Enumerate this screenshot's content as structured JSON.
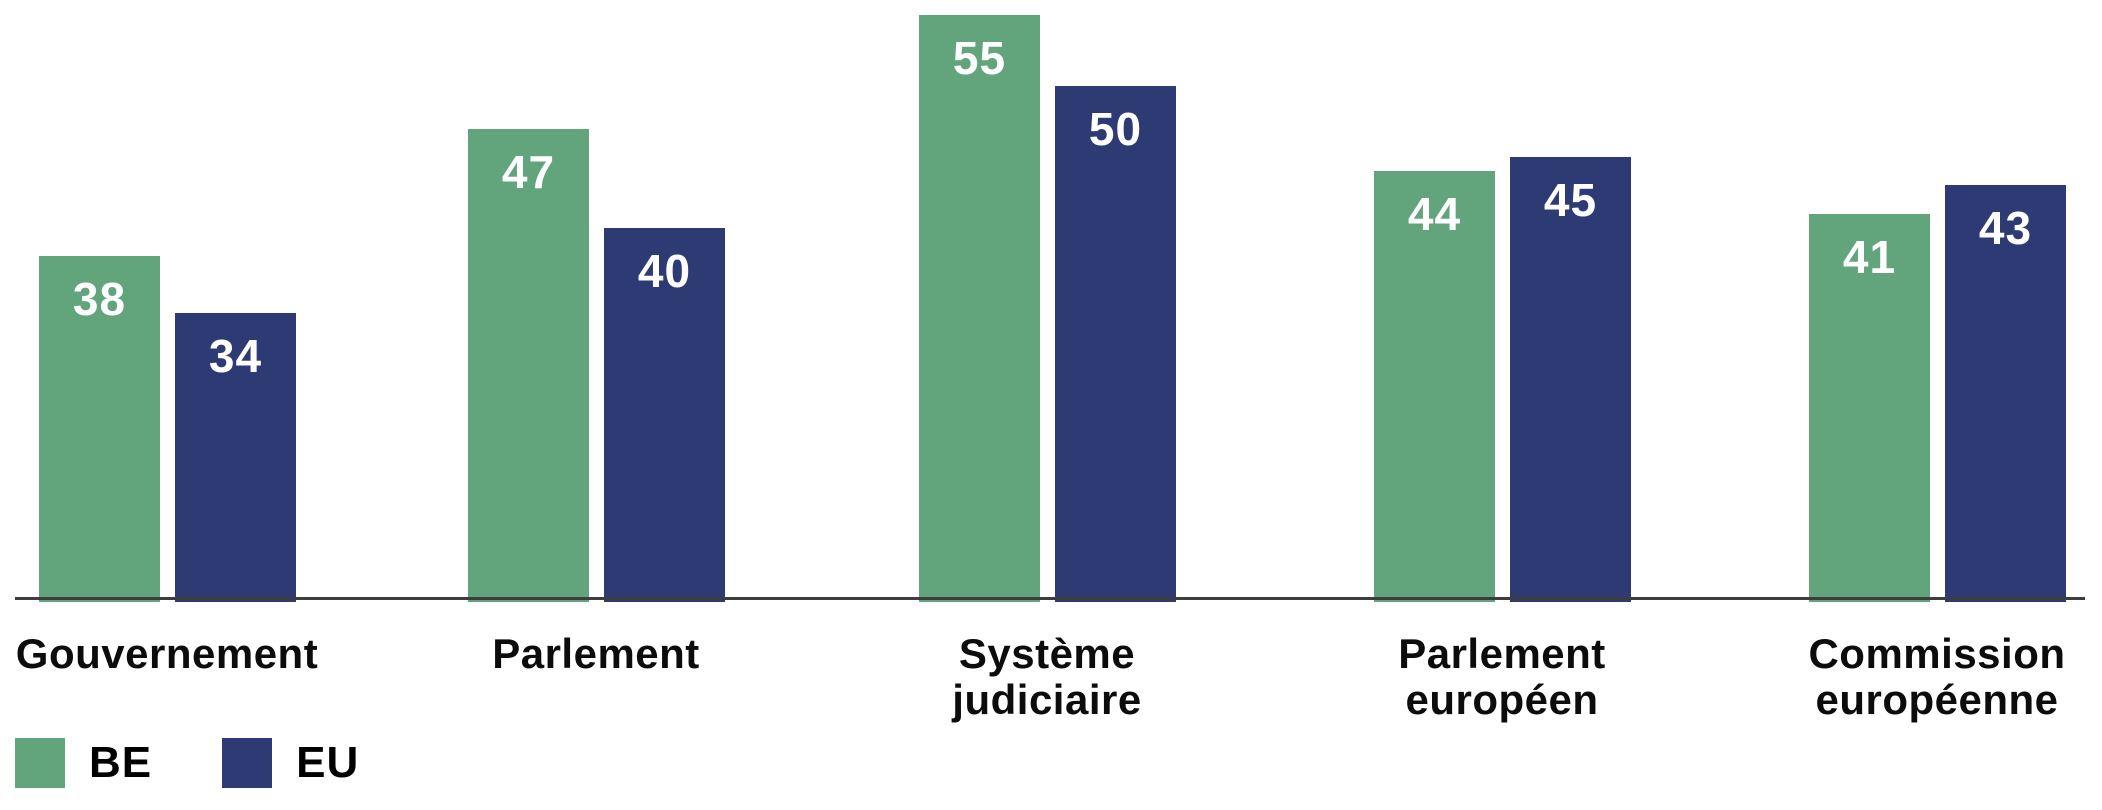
{
  "chart_data": {
    "type": "bar",
    "title": "",
    "xlabel": "",
    "ylabel": "",
    "grid": false,
    "legend_position": "bottom-left",
    "ylim": [
      13.6,
      56.8
    ],
    "categories": [
      "Gouvernement",
      "Parlement",
      "Système judiciaire",
      "Parlement européen",
      "Commission européenne"
    ],
    "categories_display": [
      [
        "Gouvernement"
      ],
      [
        "Parlement"
      ],
      [
        "Système",
        "judiciaire"
      ],
      [
        "Parlement",
        "européen"
      ],
      [
        "Commission",
        "européenne"
      ]
    ],
    "series": [
      {
        "name": "BE",
        "color": "#62a57d",
        "values": [
          38,
          47,
          55,
          44,
          41
        ]
      },
      {
        "name": "EU",
        "color": "#2d3a73",
        "values": [
          34,
          40,
          50,
          45,
          43
        ]
      }
    ]
  },
  "legend": {
    "items": [
      {
        "label": "BE",
        "color": "#62a57d"
      },
      {
        "label": "EU",
        "color": "#2d3a73"
      }
    ]
  },
  "colors": {
    "be_green": "#62a57d",
    "eu_navy": "#2d3a73",
    "axis_line": "#3d3d3d",
    "category_text": "#0c0c0c",
    "value_text": "#ffffff",
    "background": "#ffffff"
  }
}
